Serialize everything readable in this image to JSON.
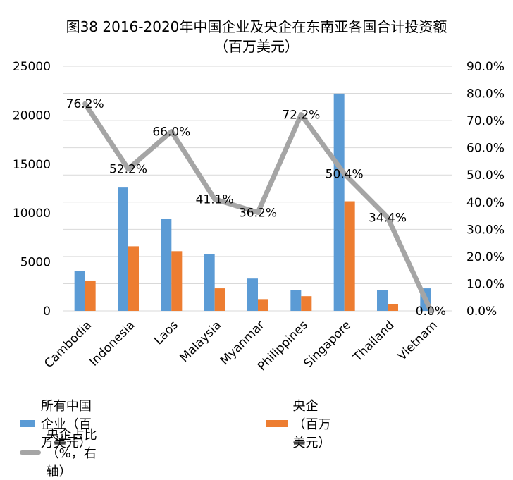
{
  "title_line1": "图38 2016-2020年中国企业及央企在东南亚各国合计投资额",
  "title_line2": "（百万美元）",
  "colors": {
    "all": "#5B9BD5",
    "soe": "#ED7D31",
    "ratio": "#A5A5A5"
  },
  "legend": [
    {
      "label": "所有中国企业（百万美元）"
    },
    {
      "label": "央企（百万美元）"
    },
    {
      "label": "央企占比（%，右轴）"
    }
  ],
  "chart_data": {
    "type": "bar",
    "categories": [
      "Cambodia",
      "Indonesia",
      "Laos",
      "Malaysia",
      "Myanmar",
      "Philippines",
      "Singapore",
      "Thailand",
      "Vietnam"
    ],
    "series": [
      {
        "name": "所有中国企业（百万美元）",
        "type": "bar",
        "axis": "left",
        "values": [
          4100,
          12600,
          9400,
          5800,
          3300,
          2100,
          22200,
          2100,
          2300
        ]
      },
      {
        "name": "央企（百万美元）",
        "type": "bar",
        "axis": "left",
        "values": [
          3100,
          6600,
          6100,
          2300,
          1200,
          1500,
          11200,
          700,
          0
        ]
      },
      {
        "name": "央企占比（%，右轴）",
        "type": "line",
        "axis": "right",
        "values": [
          76.2,
          52.2,
          66.0,
          41.1,
          36.2,
          72.2,
          50.4,
          34.4,
          0.0
        ],
        "labels": [
          "76.2%",
          "52.2%",
          "66.0%",
          "41.1%",
          "36.2%",
          "72.2%",
          "50.4%",
          "34.4%",
          "0.0%"
        ]
      }
    ],
    "y_left": {
      "ylim": [
        0,
        25000
      ],
      "ticks": [
        "0",
        "5000",
        "10000",
        "15000",
        "20000",
        "25000"
      ]
    },
    "y_right": {
      "ylim": [
        0,
        90
      ],
      "ticks": [
        "0.0%",
        "10.0%",
        "20.0%",
        "30.0%",
        "40.0%",
        "50.0%",
        "60.0%",
        "70.0%",
        "80.0%",
        "90.0%"
      ]
    },
    "grid": true,
    "legend_position": "bottom"
  }
}
